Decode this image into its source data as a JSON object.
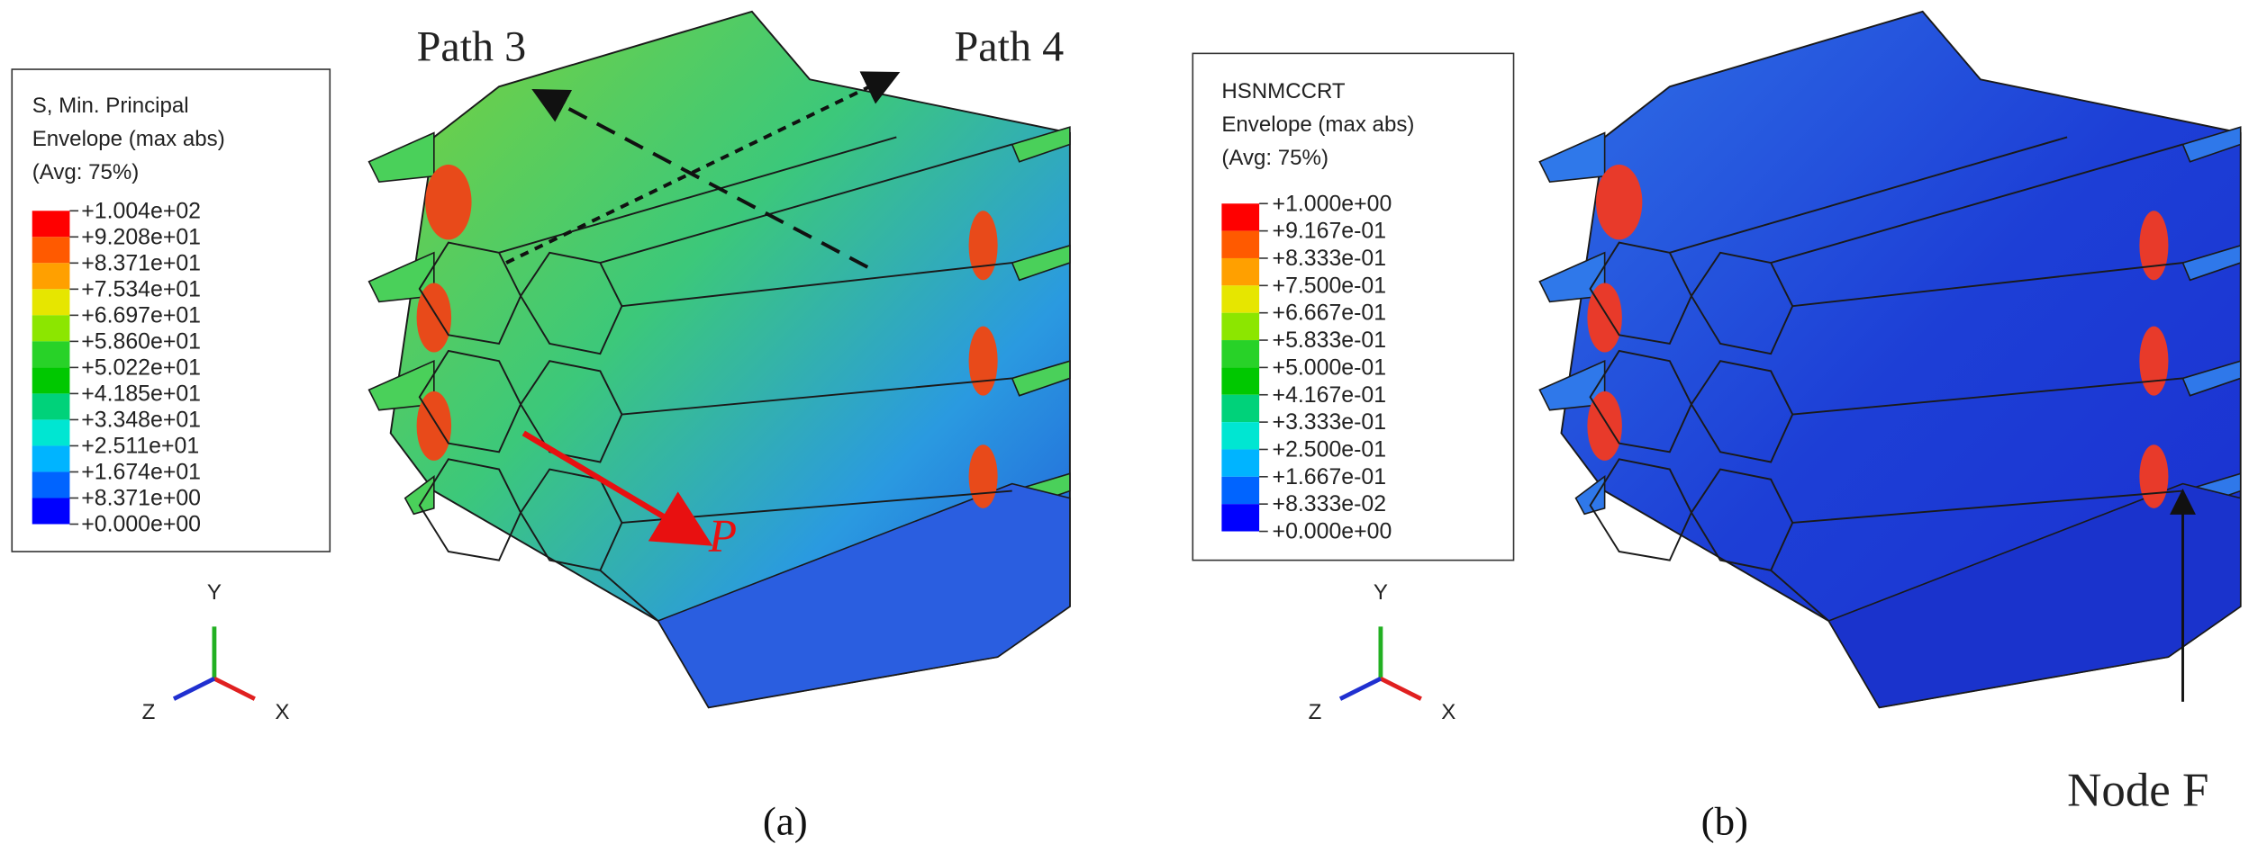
{
  "panels": [
    {
      "legend": {
        "title": [
          "S, Min. Principal",
          "Envelope (max abs)",
          "(Avg: 75%)"
        ],
        "values": [
          "+1.004e+02",
          "+9.208e+01",
          "+8.371e+01",
          "+7.534e+01",
          "+6.697e+01",
          "+5.860e+01",
          "+5.022e+01",
          "+4.185e+01",
          "+3.348e+01",
          "+2.511e+01",
          "+1.674e+01",
          "+8.371e+00",
          "+0.000e+00"
        ]
      },
      "axes": {
        "y": "Y",
        "z": "Z",
        "x": "X"
      },
      "annotations": [
        "Path 3",
        "Path 4",
        "P"
      ],
      "caption": "(a)"
    },
    {
      "legend": {
        "title": [
          "HSNMCCRT",
          "Envelope (max abs)",
          "(Avg: 75%)"
        ],
        "values": [
          "+1.000e+00",
          "+9.167e-01",
          "+8.333e-01",
          "+7.500e-01",
          "+6.667e-01",
          "+5.833e-01",
          "+5.000e-01",
          "+4.167e-01",
          "+3.333e-01",
          "+2.500e-01",
          "+1.667e-01",
          "+8.333e-02",
          "+0.000e+00"
        ]
      },
      "axes": {
        "y": "Y",
        "z": "Z",
        "x": "X"
      },
      "annotations": [
        "Node F"
      ],
      "caption": "(b)"
    }
  ],
  "legend_colors": [
    "#ff0000",
    "#ff5a00",
    "#ffa000",
    "#e6e600",
    "#8ce600",
    "#28d228",
    "#00c800",
    "#00d27a",
    "#00e6d2",
    "#00b4ff",
    "#0064ff",
    "#0000ff"
  ]
}
